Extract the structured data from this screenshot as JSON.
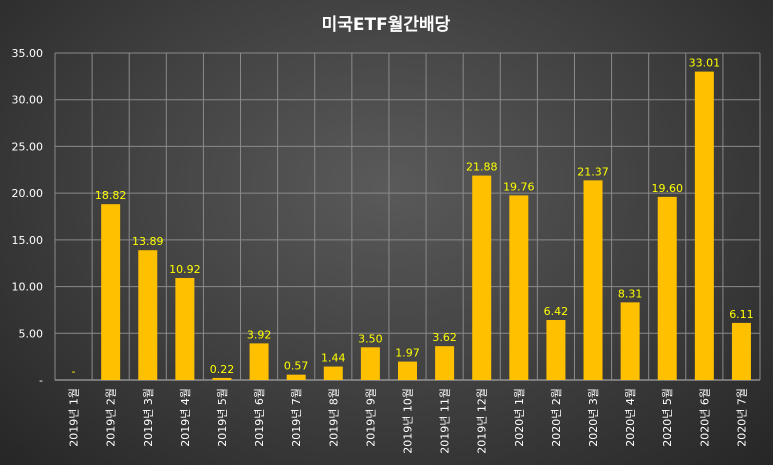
{
  "chart_data": {
    "type": "bar",
    "title": "미국ETF월간배당",
    "categories": [
      "2019년 1월",
      "2019년 2월",
      "2019년 3월",
      "2019년 4월",
      "2019년 5월",
      "2019년 6월",
      "2019년 7월",
      "2019년 8월",
      "2019년 9월",
      "2019년 10월",
      "2019년 11월",
      "2019년 12월",
      "2020년 1월",
      "2020년 2월",
      "2020년 3월",
      "2020년 4월",
      "2020년 5월",
      "2020년 6월",
      "2020년 7월"
    ],
    "values": [
      0,
      18.82,
      13.89,
      10.92,
      0.22,
      3.92,
      0.57,
      1.44,
      3.5,
      1.97,
      3.62,
      21.88,
      19.76,
      6.42,
      21.37,
      8.31,
      19.6,
      33.01,
      6.11
    ],
    "data_labels": [
      "-",
      "18.82",
      "13.89",
      "10.92",
      "0.22",
      "3.92",
      "0.57",
      "1.44",
      "3.50",
      "1.97",
      "3.62",
      "21.88",
      "19.76",
      "6.42",
      "21.37",
      "8.31",
      "19.60",
      "33.01",
      "6.11"
    ],
    "ylim": [
      0,
      35
    ],
    "yticks": [
      "-",
      "5.00",
      "10.00",
      "15.00",
      "20.00",
      "25.00",
      "30.00",
      "35.00"
    ],
    "xlabel": "",
    "ylabel": "",
    "grid": true,
    "legend": "none",
    "colors": {
      "bar": "#FFC000",
      "data_label": "#FFFF00",
      "text": "#FFFFFF",
      "grid": "#8A8A8A"
    }
  }
}
